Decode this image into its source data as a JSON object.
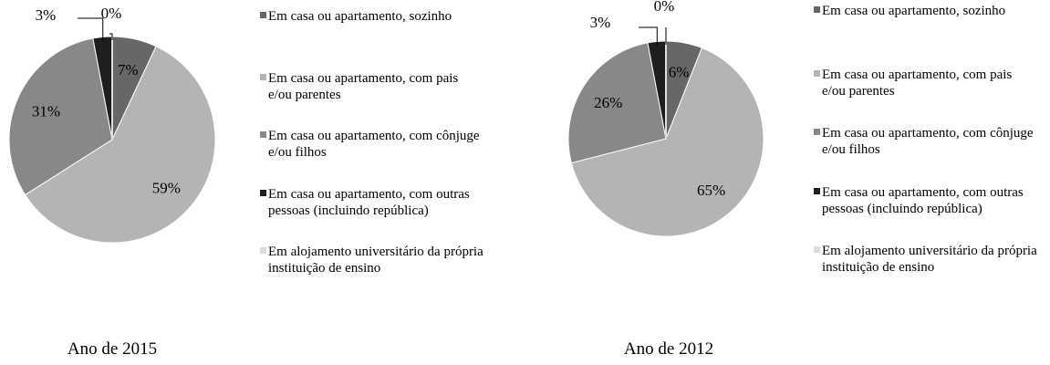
{
  "chart_data": [
    {
      "type": "pie",
      "title": "Ano de 2015",
      "categories": [
        "Em casa ou apartamento, sozinho",
        "Em casa ou apartamento, com pais e/ou parentes",
        "Em casa ou apartamento, com cônjuge e/ou filhos",
        "Em casa ou apartamento, com outras pessoas (incluindo república)",
        "Em alojamento universitário da própria instituição de ensino"
      ],
      "values": [
        7,
        59,
        31,
        3,
        0
      ],
      "value_labels": [
        "7%",
        "59%",
        "31%",
        "3%",
        "0%"
      ],
      "colors": [
        "#676767",
        "#b4b4b4",
        "#888888",
        "#1e1e1e",
        "#dddddd"
      ],
      "legend": "right"
    },
    {
      "type": "pie",
      "title": "Ano de 2012",
      "categories": [
        "Em casa ou apartamento, sozinho",
        "Em casa ou apartamento, com pais e/ou parentes",
        "Em casa ou apartamento, com cônjuge e/ou filhos",
        "Em casa ou apartamento, com outras pessoas (incluindo república)",
        "Em alojamento universitário da própria instituição de ensino"
      ],
      "values": [
        6,
        65,
        26,
        3,
        0
      ],
      "value_labels": [
        "6%",
        "65%",
        "26%",
        "3%",
        "0%"
      ],
      "colors": [
        "#676767",
        "#b4b4b4",
        "#888888",
        "#1e1e1e",
        "#dddddd"
      ],
      "legend": "right"
    }
  ]
}
